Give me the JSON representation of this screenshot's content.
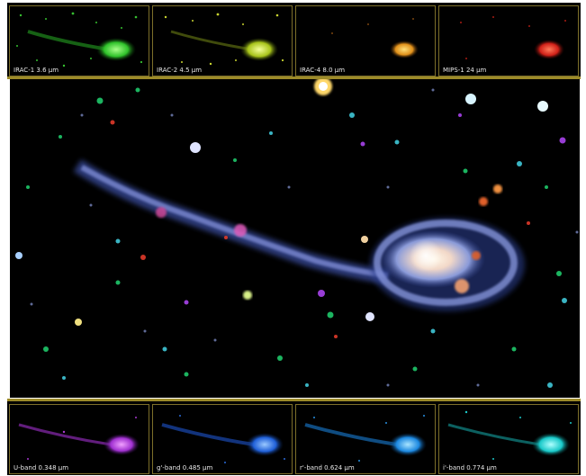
{
  "top_panels": [
    {
      "label": "IRAC-1  3.6 μm",
      "color": "#3fd23a"
    },
    {
      "label": "IRAC-2  4.5 μm",
      "color": "#b8d420"
    },
    {
      "label": "IRAC-4  8.0 μm",
      "color": "#f0a21a"
    },
    {
      "label": "MIPS-1  24 μm",
      "color": "#e8281c"
    }
  ],
  "bottom_panels": [
    {
      "label": "U-band  0.348 μm",
      "color": "#b33ad6"
    },
    {
      "label": "g'-band  0.485 μm",
      "color": "#2860e0"
    },
    {
      "label": "r'-band  0.624 μm",
      "color": "#1c8ce8"
    },
    {
      "label": "i'-band  0.774 μm",
      "color": "#1ccfcf"
    }
  ],
  "main_image": {
    "subject": "galaxy-tadpole-composite"
  }
}
